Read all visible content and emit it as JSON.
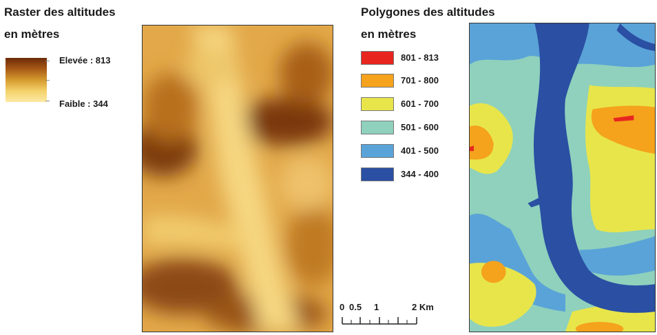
{
  "raster_legend": {
    "title_line1": "Raster des altitudes",
    "title_line2": "en mètres",
    "high_label": "Elevée : 813",
    "low_label": "Faible : 344",
    "gradient_colors": [
      "#6b2a08",
      "#a85a16",
      "#d69a2e",
      "#f3d26a",
      "#fbe9a4"
    ]
  },
  "polygon_legend": {
    "title_line1": "Polygones des altitudes",
    "title_line2": "en mètres",
    "classes": [
      {
        "label": "801 - 813",
        "color": "#e8261f"
      },
      {
        "label": "701 - 800",
        "color": "#f5a21c"
      },
      {
        "label": "601 - 700",
        "color": "#e8e54b"
      },
      {
        "label": "501 - 600",
        "color": "#8fd1bc"
      },
      {
        "label": "401 - 500",
        "color": "#5aa3d8"
      },
      {
        "label": "344 - 400",
        "color": "#2a4fa3"
      }
    ]
  },
  "scale_bar": {
    "labels": [
      "0",
      "0.5",
      "1",
      "2 Km"
    ],
    "values_km": [
      0,
      0.5,
      1,
      2
    ]
  }
}
